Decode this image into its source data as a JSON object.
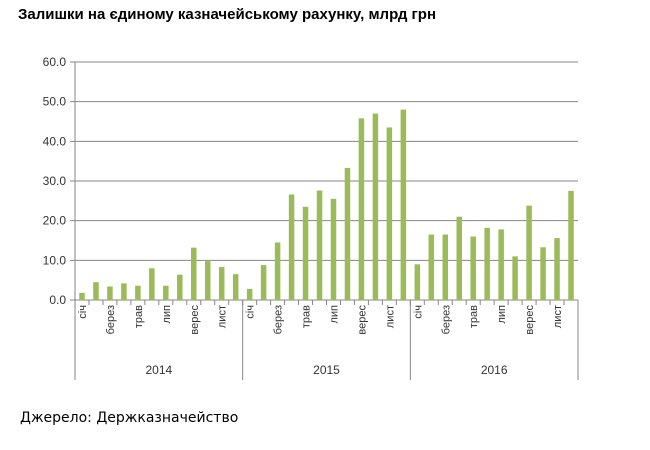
{
  "title": "Залишки на єдиному казначейському рахунку, млрд грн",
  "source": "Джерело: Держказначейство",
  "colors": {
    "bar": "#9bbb59",
    "axis": "#868686",
    "grid": "#868686"
  },
  "chart_data": {
    "type": "bar",
    "title": "Залишки на єдиному казначейському рахунку, млрд грн",
    "xlabel": "",
    "ylabel": "",
    "ylim": [
      0,
      60
    ],
    "yticks": [
      "0.0",
      "10.0",
      "20.0",
      "30.0",
      "40.0",
      "50.0",
      "60.0"
    ],
    "grid": true,
    "legend": "none",
    "groups": [
      {
        "year": "2014",
        "values": [
          1.8,
          4.5,
          3.4,
          4.2,
          3.6,
          8.0,
          3.6,
          6.4,
          13.2,
          9.8,
          8.3,
          6.5
        ]
      },
      {
        "year": "2015",
        "values": [
          2.8,
          8.8,
          14.5,
          26.6,
          23.5,
          27.6,
          25.5,
          33.3,
          45.8,
          47.0,
          43.5,
          48.0
        ]
      },
      {
        "year": "2016",
        "values": [
          9.0,
          16.5,
          16.5,
          21.0,
          16.0,
          18.2,
          17.8,
          11.0,
          23.8,
          13.3,
          15.6,
          27.5
        ]
      }
    ],
    "month_tick_labels": [
      "січ",
      "",
      "берез",
      "",
      "трав",
      "",
      "лип",
      "",
      "верес",
      "",
      "лист",
      ""
    ]
  }
}
